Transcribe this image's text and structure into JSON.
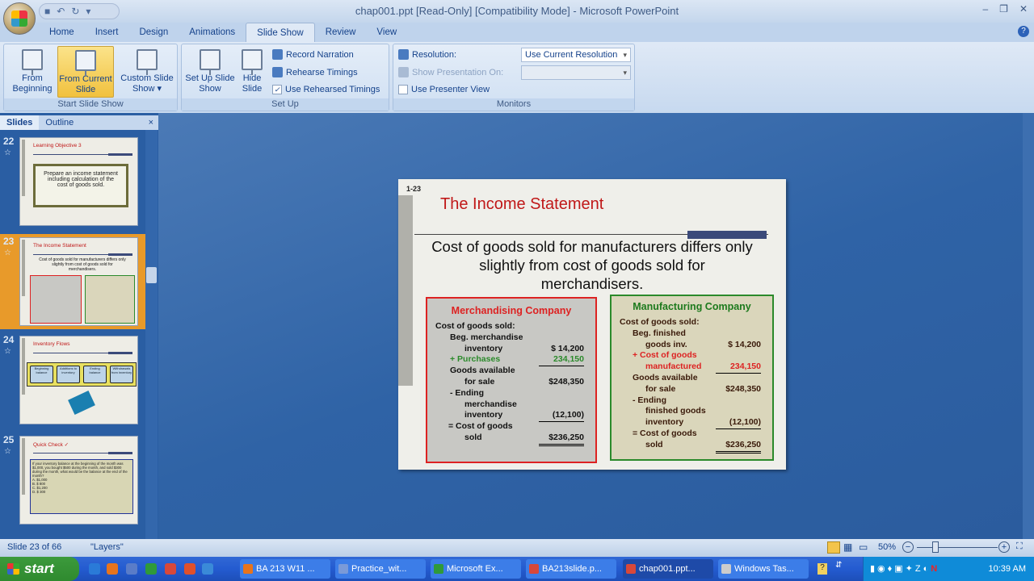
{
  "window": {
    "title": "chap001.ppt [Read-Only] [Compatibility Mode] - Microsoft PowerPoint"
  },
  "tabs": [
    "Home",
    "Insert",
    "Design",
    "Animations",
    "Slide Show",
    "Review",
    "View"
  ],
  "active_tab": "Slide Show",
  "ribbon": {
    "start_group": {
      "label": "Start Slide Show",
      "from_beginning": "From Beginning",
      "from_current": "From Current Slide",
      "custom": "Custom Slide Show"
    },
    "setup_group": {
      "label": "Set Up",
      "setup": "Set Up Slide Show",
      "hide": "Hide Slide",
      "record": "Record Narration",
      "rehearse": "Rehearse Timings",
      "use_timings": "Use Rehearsed Timings",
      "use_timings_checked": true
    },
    "monitors_group": {
      "label": "Monitors",
      "resolution_label": "Resolution:",
      "resolution_value": "Use Current Resolution",
      "show_on_label": "Show Presentation On:",
      "show_on_value": "",
      "presenter_view": "Use Presenter View",
      "presenter_view_checked": false
    }
  },
  "pane": {
    "tabs": [
      "Slides",
      "Outline"
    ],
    "close": "×",
    "thumbs": [
      {
        "num": "22",
        "title": "Learning Objective 3",
        "body": "Prepare an income statement including calculation of the cost of goods sold."
      },
      {
        "num": "23",
        "title": "The Income Statement",
        "body": "Cost of goods sold for manufacturers differs only slightly from cost of goods sold for merchandisers."
      },
      {
        "num": "24",
        "title": "Inventory Flows",
        "boxes": [
          "Beginning balance",
          "Additions to inventory",
          "Ending balance",
          "Withdrawals from inventory"
        ]
      },
      {
        "num": "25",
        "title": "Quick Check ✓",
        "body": "If your inventory balance at the beginning of the month was $1,000, you bought $500 during the month, and sold $300 during the month, what would be the balance at the end of the month?",
        "options": [
          "A. $1,000",
          "B. $ 800",
          "C. $1,200",
          "D. $ 300"
        ]
      }
    ]
  },
  "slide": {
    "number": "1-23",
    "title": "The Income Statement",
    "subtitle": "Cost of goods sold for manufacturers differs only slightly from cost of goods sold for merchandisers.",
    "merch": {
      "heading": "Merchandising Company",
      "rows": [
        {
          "l": "Cost of goods sold:",
          "v": ""
        },
        {
          "l": "Beg. merchandise",
          "v": ""
        },
        {
          "l": "inventory",
          "v": "$ 14,200"
        },
        {
          "l": "+ Purchases",
          "v": "234,150"
        },
        {
          "l": "Goods available",
          "v": ""
        },
        {
          "l": "for sale",
          "v": "$248,350"
        },
        {
          "l": "- Ending",
          "v": ""
        },
        {
          "l": "merchandise",
          "v": ""
        },
        {
          "l": "inventory",
          "v": "(12,100)"
        },
        {
          "l": "= Cost of goods",
          "v": ""
        },
        {
          "l": "sold",
          "v": "$236,250"
        }
      ]
    },
    "manuf": {
      "heading": "Manufacturing Company",
      "rows": [
        {
          "l": "Cost of goods sold:",
          "v": ""
        },
        {
          "l": "Beg. finished",
          "v": ""
        },
        {
          "l": "goods inv.",
          "v": "$ 14,200"
        },
        {
          "l": "+ Cost of goods",
          "v": ""
        },
        {
          "l": "manufactured",
          "v": "234,150"
        },
        {
          "l": "Goods available",
          "v": ""
        },
        {
          "l": "for sale",
          "v": "$248,350"
        },
        {
          "l": "- Ending",
          "v": ""
        },
        {
          "l": "finished goods",
          "v": ""
        },
        {
          "l": "inventory",
          "v": "(12,100)"
        },
        {
          "l": "= Cost of goods",
          "v": ""
        },
        {
          "l": "sold",
          "v": "$236,250"
        }
      ]
    }
  },
  "status": {
    "slide": "Slide 23 of 66",
    "theme": "\"Layers\"",
    "zoom": "50%",
    "zoom_percent": 50
  },
  "taskbar": {
    "start": "start",
    "tasks": [
      "BA 213 W11 ...",
      "Practice_wit...",
      "Microsoft Ex...",
      "BA213slide.p...",
      "chap001.ppt...",
      "Windows Tas..."
    ],
    "active_task": "chap001.ppt...",
    "clock": "10:39 AM"
  },
  "colors": {
    "accent": "#c01818",
    "merch_border": "#dd2222",
    "manuf_border": "#2b8a2b",
    "ribbon": "#dfe9f6",
    "highlight": "#f1c13e"
  }
}
